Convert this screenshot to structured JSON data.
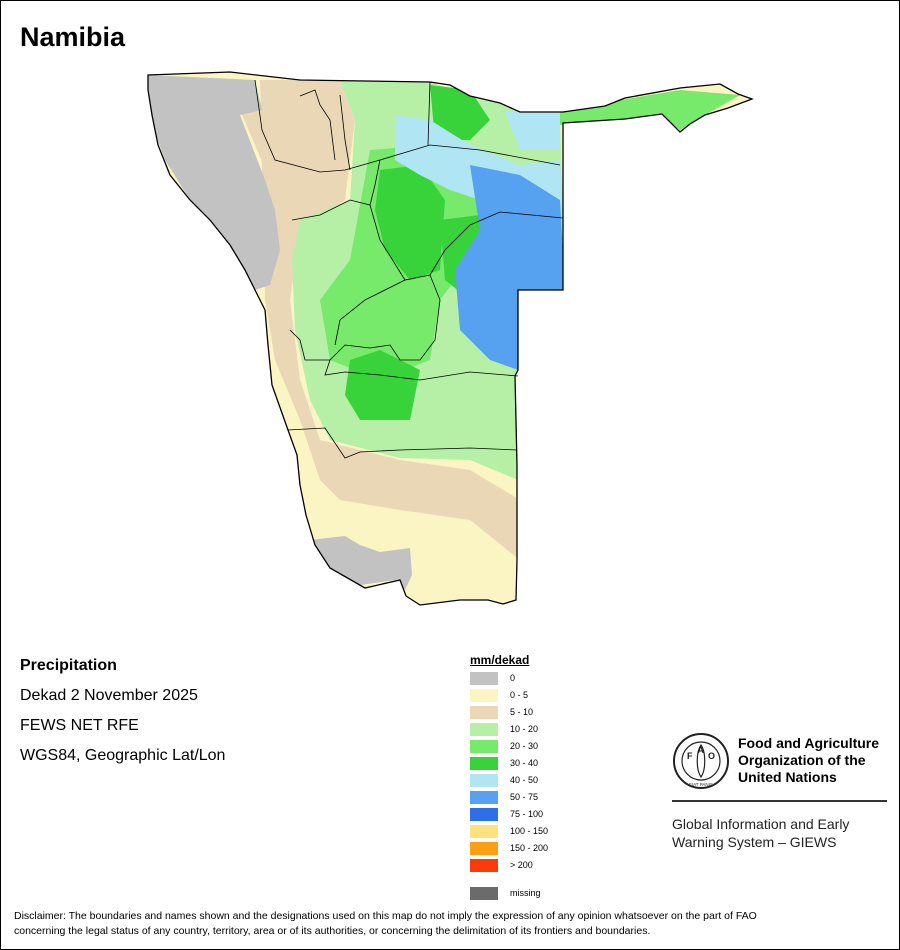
{
  "map": {
    "title": "Namibia",
    "info": {
      "variable": "Precipitation",
      "period": "Dekad 2 November 2025",
      "source": "FEWS NET RFE",
      "projection": "WGS84, Geographic Lat/Lon"
    },
    "legend": {
      "title": "mm/dekad",
      "classes": [
        {
          "label": "0",
          "color": "#c2c2c2"
        },
        {
          "label": "0 - 5",
          "color": "#fbf5c4"
        },
        {
          "label": "5 - 10",
          "color": "#ead7b6"
        },
        {
          "label": "10 - 20",
          "color": "#b6f0a7"
        },
        {
          "label": "20 - 30",
          "color": "#77ea6b"
        },
        {
          "label": "30 - 40",
          "color": "#38d23a"
        },
        {
          "label": "40 - 50",
          "color": "#b0e6f3"
        },
        {
          "label": "50 - 75",
          "color": "#56a2f0"
        },
        {
          "label": "75 - 100",
          "color": "#2d6fe6"
        },
        {
          "label": "100 - 150",
          "color": "#fde27e"
        },
        {
          "label": "150 - 200",
          "color": "#f9a013"
        },
        {
          "label": "> 200",
          "color": "#fb3c09"
        },
        {
          "label": "missing",
          "color": "#6b6b6b"
        }
      ]
    },
    "organization": {
      "name_lines": [
        "Food and Agriculture",
        "Organization of the",
        "United Nations"
      ],
      "logo_letters": [
        "F",
        "A",
        "O"
      ],
      "logo_motto": "FIAT PANIS",
      "system_lines": [
        "Global Information and Early",
        "Warning System – GIEWS"
      ]
    },
    "disclaimer_lines": [
      "Disclaimer: The boundaries and names shown and the designations used on this map do not imply the expression of any opinion whatsoever on the part of FAO",
      "concerning the legal status of any country, territory, area or of its authorities, or concerning the delimitation of its frontiers and boundaries."
    ]
  }
}
